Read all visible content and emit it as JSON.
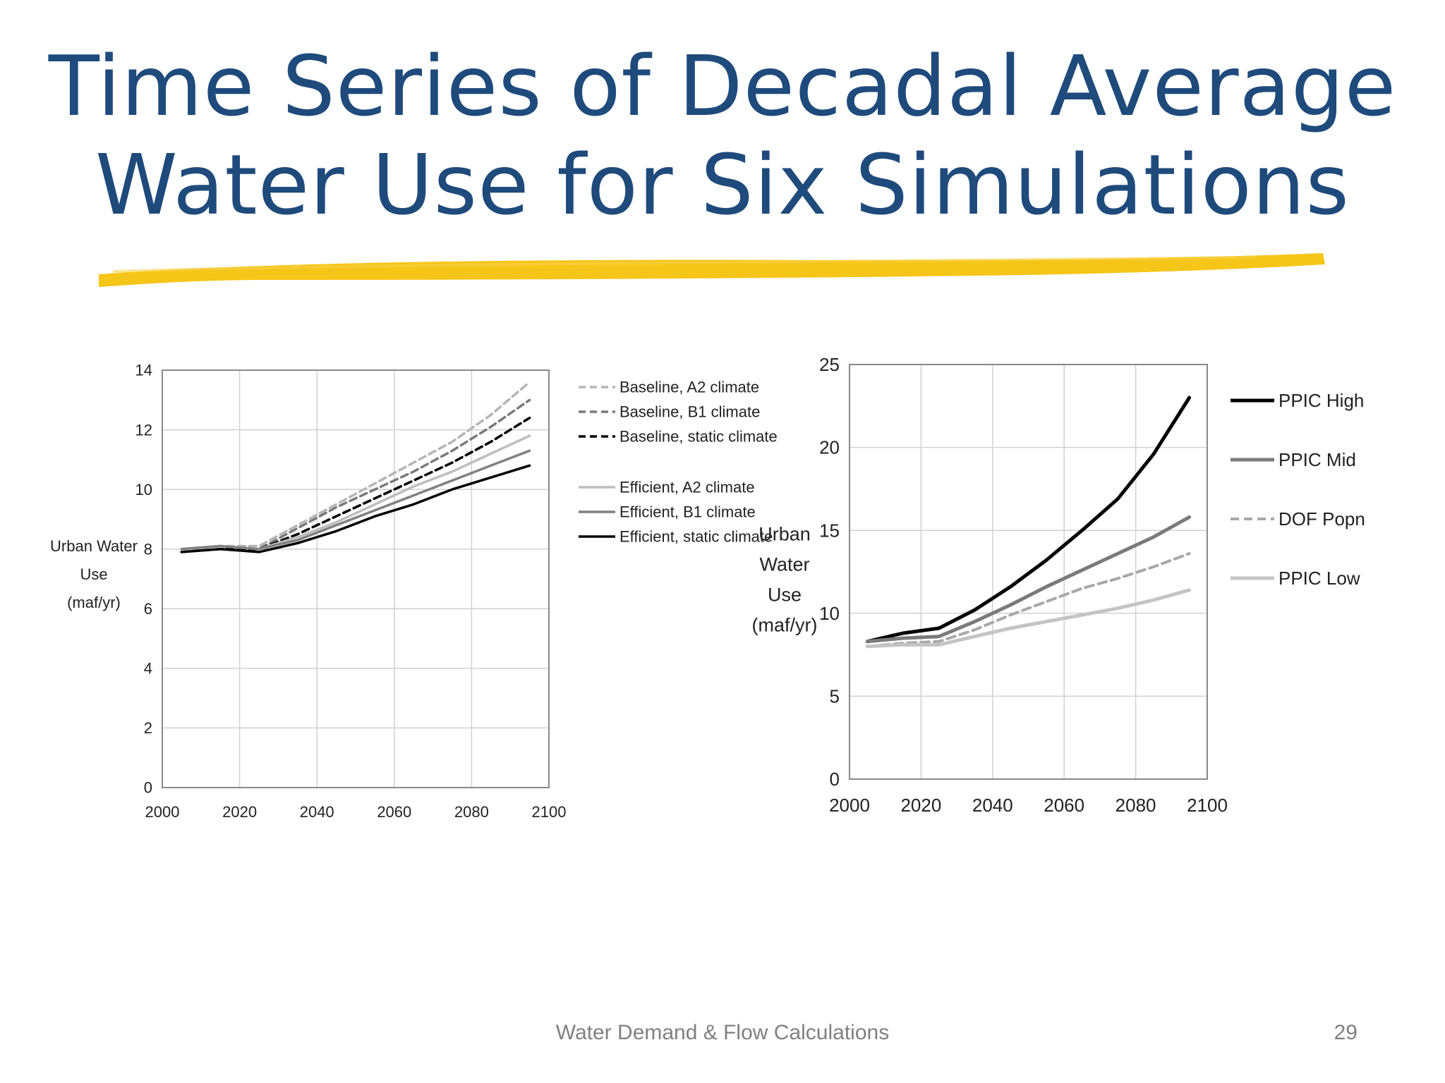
{
  "slide": {
    "title_line1": "Time Series of Decadal Average",
    "title_line2": "Water Use for Six Simulations",
    "footer": "Water Demand & Flow Calculations",
    "page_number": "29",
    "title_color": "#1f4a7c",
    "underline_color": "#f5c518"
  },
  "chart_data": [
    {
      "type": "line",
      "ylabel": [
        "Urban Water",
        "Use",
        "(maf/yr)"
      ],
      "xlim": [
        2000,
        2100
      ],
      "ylim": [
        0,
        14
      ],
      "xticks": [
        2000,
        2020,
        2040,
        2060,
        2080,
        2100
      ],
      "yticks": [
        0,
        2,
        4,
        6,
        8,
        10,
        12,
        14
      ],
      "grid": true,
      "legend_position": "right",
      "x": [
        2005,
        2015,
        2025,
        2035,
        2045,
        2055,
        2065,
        2075,
        2085,
        2095
      ],
      "series": [
        {
          "name": "Baseline, A2 climate",
          "color": "#b5b5b5",
          "dash": true,
          "values": [
            8.0,
            8.1,
            8.1,
            8.8,
            9.5,
            10.2,
            10.9,
            11.6,
            12.5,
            13.6
          ]
        },
        {
          "name": "Baseline, B1 climate",
          "color": "#7a7a7a",
          "dash": true,
          "values": [
            8.0,
            8.1,
            8.0,
            8.7,
            9.4,
            10.0,
            10.6,
            11.3,
            12.1,
            13.0
          ]
        },
        {
          "name": "Baseline, static climate",
          "color": "#000000",
          "dash": true,
          "values": [
            7.9,
            8.0,
            8.0,
            8.5,
            9.1,
            9.7,
            10.3,
            10.9,
            11.6,
            12.4
          ]
        },
        {
          "name": "Efficient, A2 climate",
          "color": "#bdbdbd",
          "dash": false,
          "values": [
            8.0,
            8.1,
            8.0,
            8.4,
            8.9,
            9.5,
            10.1,
            10.6,
            11.2,
            11.8
          ]
        },
        {
          "name": "Efficient, B1 climate",
          "color": "#808080",
          "dash": false,
          "values": [
            8.0,
            8.1,
            8.0,
            8.3,
            8.8,
            9.3,
            9.8,
            10.3,
            10.8,
            11.3
          ]
        },
        {
          "name": "Efficient, static climate",
          "color": "#000000",
          "dash": false,
          "values": [
            7.9,
            8.0,
            7.9,
            8.2,
            8.6,
            9.1,
            9.5,
            10.0,
            10.4,
            10.8
          ]
        }
      ]
    },
    {
      "type": "line",
      "ylabel": [
        "Urban",
        "Water",
        "Use",
        "(maf/yr)"
      ],
      "xlim": [
        2000,
        2100
      ],
      "ylim": [
        0,
        25
      ],
      "xticks": [
        2000,
        2020,
        2040,
        2060,
        2080,
        2100
      ],
      "yticks": [
        0,
        5,
        10,
        15,
        20,
        25
      ],
      "grid": true,
      "legend_position": "right",
      "x": [
        2005,
        2015,
        2025,
        2035,
        2045,
        2055,
        2065,
        2075,
        2085,
        2095
      ],
      "series": [
        {
          "name": "PPIC High",
          "color": "#000000",
          "dash": false,
          "width": 5,
          "values": [
            8.3,
            8.8,
            9.1,
            10.2,
            11.6,
            13.2,
            15.0,
            16.9,
            19.6,
            23.0
          ]
        },
        {
          "name": "PPIC Mid",
          "color": "#7a7a7a",
          "dash": false,
          "width": 5,
          "values": [
            8.3,
            8.5,
            8.6,
            9.5,
            10.5,
            11.6,
            12.6,
            13.6,
            14.6,
            15.8
          ]
        },
        {
          "name": "DOF Popn",
          "color": "#a8a8a8",
          "dash": true,
          "width": 4,
          "values": [
            8.0,
            8.2,
            8.3,
            9.0,
            9.9,
            10.7,
            11.5,
            12.1,
            12.8,
            13.6
          ]
        },
        {
          "name": "PPIC Low",
          "color": "#c4c4c4",
          "dash": false,
          "width": 5,
          "values": [
            8.0,
            8.1,
            8.1,
            8.6,
            9.1,
            9.5,
            9.9,
            10.3,
            10.8,
            11.4
          ]
        }
      ]
    }
  ]
}
